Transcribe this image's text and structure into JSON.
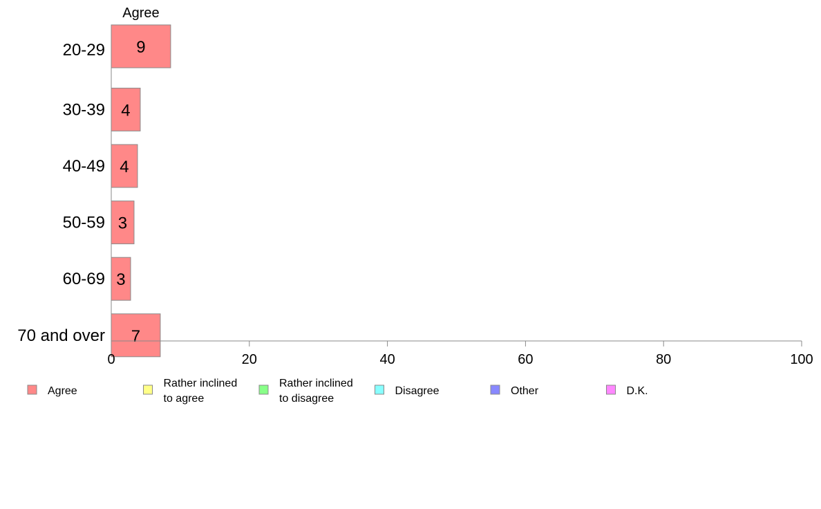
{
  "chart_data": {
    "type": "bar",
    "orientation": "horizontal",
    "stacked": true,
    "categories": [
      "20-29",
      "30-39",
      "40-49",
      "50-59",
      "60-69",
      "70 and over"
    ],
    "series": [
      {
        "name": "Agree",
        "color": "#ff8888",
        "values": [
          8.6,
          4.2,
          3.8,
          3.3,
          2.8,
          7.1
        ],
        "labels": [
          "9",
          "4",
          "4",
          "3",
          "3",
          "7"
        ]
      }
    ],
    "xlim": [
      0,
      100
    ],
    "xticks": [
      "0",
      "20",
      "40",
      "60",
      "80",
      "100"
    ],
    "series_header": "Agree",
    "grid": false,
    "legend_position": "bottom",
    "legend": [
      {
        "lines": [
          "Agree"
        ],
        "color": "#ff8888"
      },
      {
        "lines": [
          "Rather inclined",
          "to agree"
        ],
        "color": "#ffff88"
      },
      {
        "lines": [
          "Rather inclined",
          "to disagree"
        ],
        "color": "#88ff88"
      },
      {
        "lines": [
          "Disagree"
        ],
        "color": "#88ffff"
      },
      {
        "lines": [
          "Other"
        ],
        "color": "#8888ff"
      },
      {
        "lines": [
          "D.K."
        ],
        "color": "#ff88ff"
      }
    ]
  }
}
